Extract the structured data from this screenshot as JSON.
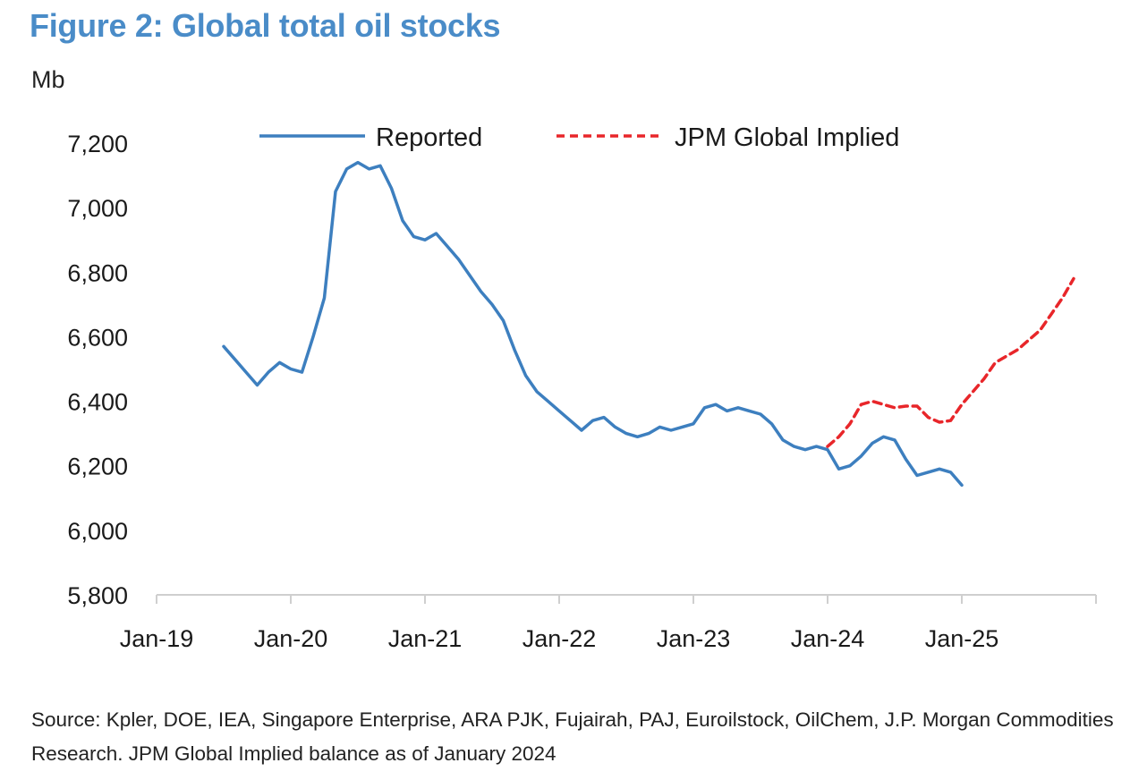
{
  "figure": {
    "title": "Figure 2: Global total oil stocks",
    "unit_label": "Mb",
    "source_note": "Source: Kpler, DOE, IEA, Singapore Enterprise, ARA PJK, Fujairah, PAJ, Euroilstock, OilChem, J.P. Morgan Commodities Research. JPM Global Implied balance as of January 2024"
  },
  "chart_data": {
    "type": "line",
    "title": "Figure 2: Global total oil stocks",
    "ylabel": "Mb",
    "xlabel": "",
    "ylim": [
      5800,
      7200
    ],
    "yticks": [
      5800,
      6000,
      6200,
      6400,
      6600,
      6800,
      7000,
      7200
    ],
    "ytick_labels": [
      "5,800",
      "6,000",
      "6,200",
      "6,400",
      "6,600",
      "6,800",
      "7,000",
      "7,200"
    ],
    "xlim": [
      "2019-01",
      "2026-01"
    ],
    "xticks": [
      "2019-01",
      "2020-01",
      "2021-01",
      "2022-01",
      "2023-01",
      "2024-01",
      "2025-01"
    ],
    "xtick_labels": [
      "Jan-19",
      "Jan-20",
      "Jan-21",
      "Jan-22",
      "Jan-23",
      "Jan-24",
      "Jan-25"
    ],
    "grid": false,
    "legend_position": "top-center",
    "series": [
      {
        "name": "Reported",
        "color": "#3d7fbf",
        "style": "solid",
        "points": [
          [
            "2019-07",
            6570
          ],
          [
            "2019-08",
            6530
          ],
          [
            "2019-09",
            6490
          ],
          [
            "2019-10",
            6450
          ],
          [
            "2019-11",
            6490
          ],
          [
            "2019-12",
            6520
          ],
          [
            "2020-01",
            6500
          ],
          [
            "2020-02",
            6490
          ],
          [
            "2020-03",
            6600
          ],
          [
            "2020-04",
            6720
          ],
          [
            "2020-05",
            7050
          ],
          [
            "2020-06",
            7120
          ],
          [
            "2020-07",
            7140
          ],
          [
            "2020-08",
            7120
          ],
          [
            "2020-09",
            7130
          ],
          [
            "2020-10",
            7060
          ],
          [
            "2020-11",
            6960
          ],
          [
            "2020-12",
            6910
          ],
          [
            "2021-01",
            6900
          ],
          [
            "2021-02",
            6920
          ],
          [
            "2021-03",
            6880
          ],
          [
            "2021-04",
            6840
          ],
          [
            "2021-05",
            6790
          ],
          [
            "2021-06",
            6740
          ],
          [
            "2021-07",
            6700
          ],
          [
            "2021-08",
            6650
          ],
          [
            "2021-09",
            6560
          ],
          [
            "2021-10",
            6480
          ],
          [
            "2021-11",
            6430
          ],
          [
            "2021-12",
            6400
          ],
          [
            "2022-01",
            6370
          ],
          [
            "2022-02",
            6340
          ],
          [
            "2022-03",
            6310
          ],
          [
            "2022-04",
            6340
          ],
          [
            "2022-05",
            6350
          ],
          [
            "2022-06",
            6320
          ],
          [
            "2022-07",
            6300
          ],
          [
            "2022-08",
            6290
          ],
          [
            "2022-09",
            6300
          ],
          [
            "2022-10",
            6320
          ],
          [
            "2022-11",
            6310
          ],
          [
            "2022-12",
            6320
          ],
          [
            "2023-01",
            6330
          ],
          [
            "2023-02",
            6380
          ],
          [
            "2023-03",
            6390
          ],
          [
            "2023-04",
            6370
          ],
          [
            "2023-05",
            6380
          ],
          [
            "2023-06",
            6370
          ],
          [
            "2023-07",
            6360
          ],
          [
            "2023-08",
            6330
          ],
          [
            "2023-09",
            6280
          ],
          [
            "2023-10",
            6260
          ],
          [
            "2023-11",
            6250
          ],
          [
            "2023-12",
            6260
          ],
          [
            "2024-01",
            6250
          ],
          [
            "2024-02",
            6190
          ],
          [
            "2024-03",
            6200
          ],
          [
            "2024-04",
            6230
          ],
          [
            "2024-05",
            6270
          ],
          [
            "2024-06",
            6290
          ],
          [
            "2024-07",
            6280
          ],
          [
            "2024-08",
            6220
          ],
          [
            "2024-09",
            6170
          ],
          [
            "2024-10",
            6180
          ],
          [
            "2024-11",
            6190
          ],
          [
            "2024-12",
            6180
          ],
          [
            "2025-01",
            6140
          ]
        ]
      },
      {
        "name": "JPM Global Implied",
        "color": "#e8262a",
        "style": "dashed",
        "points": [
          [
            "2024-01",
            6260
          ],
          [
            "2024-02",
            6290
          ],
          [
            "2024-03",
            6330
          ],
          [
            "2024-04",
            6390
          ],
          [
            "2024-05",
            6400
          ],
          [
            "2024-06",
            6390
          ],
          [
            "2024-07",
            6380
          ],
          [
            "2024-08",
            6385
          ],
          [
            "2024-09",
            6385
          ],
          [
            "2024-10",
            6350
          ],
          [
            "2024-11",
            6335
          ],
          [
            "2024-12",
            6340
          ],
          [
            "2025-01",
            6390
          ],
          [
            "2025-02",
            6430
          ],
          [
            "2025-03",
            6470
          ],
          [
            "2025-04",
            6520
          ],
          [
            "2025-05",
            6540
          ],
          [
            "2025-06",
            6560
          ],
          [
            "2025-07",
            6590
          ],
          [
            "2025-08",
            6620
          ],
          [
            "2025-09",
            6670
          ],
          [
            "2025-10",
            6720
          ],
          [
            "2025-11",
            6780
          ]
        ]
      }
    ]
  }
}
